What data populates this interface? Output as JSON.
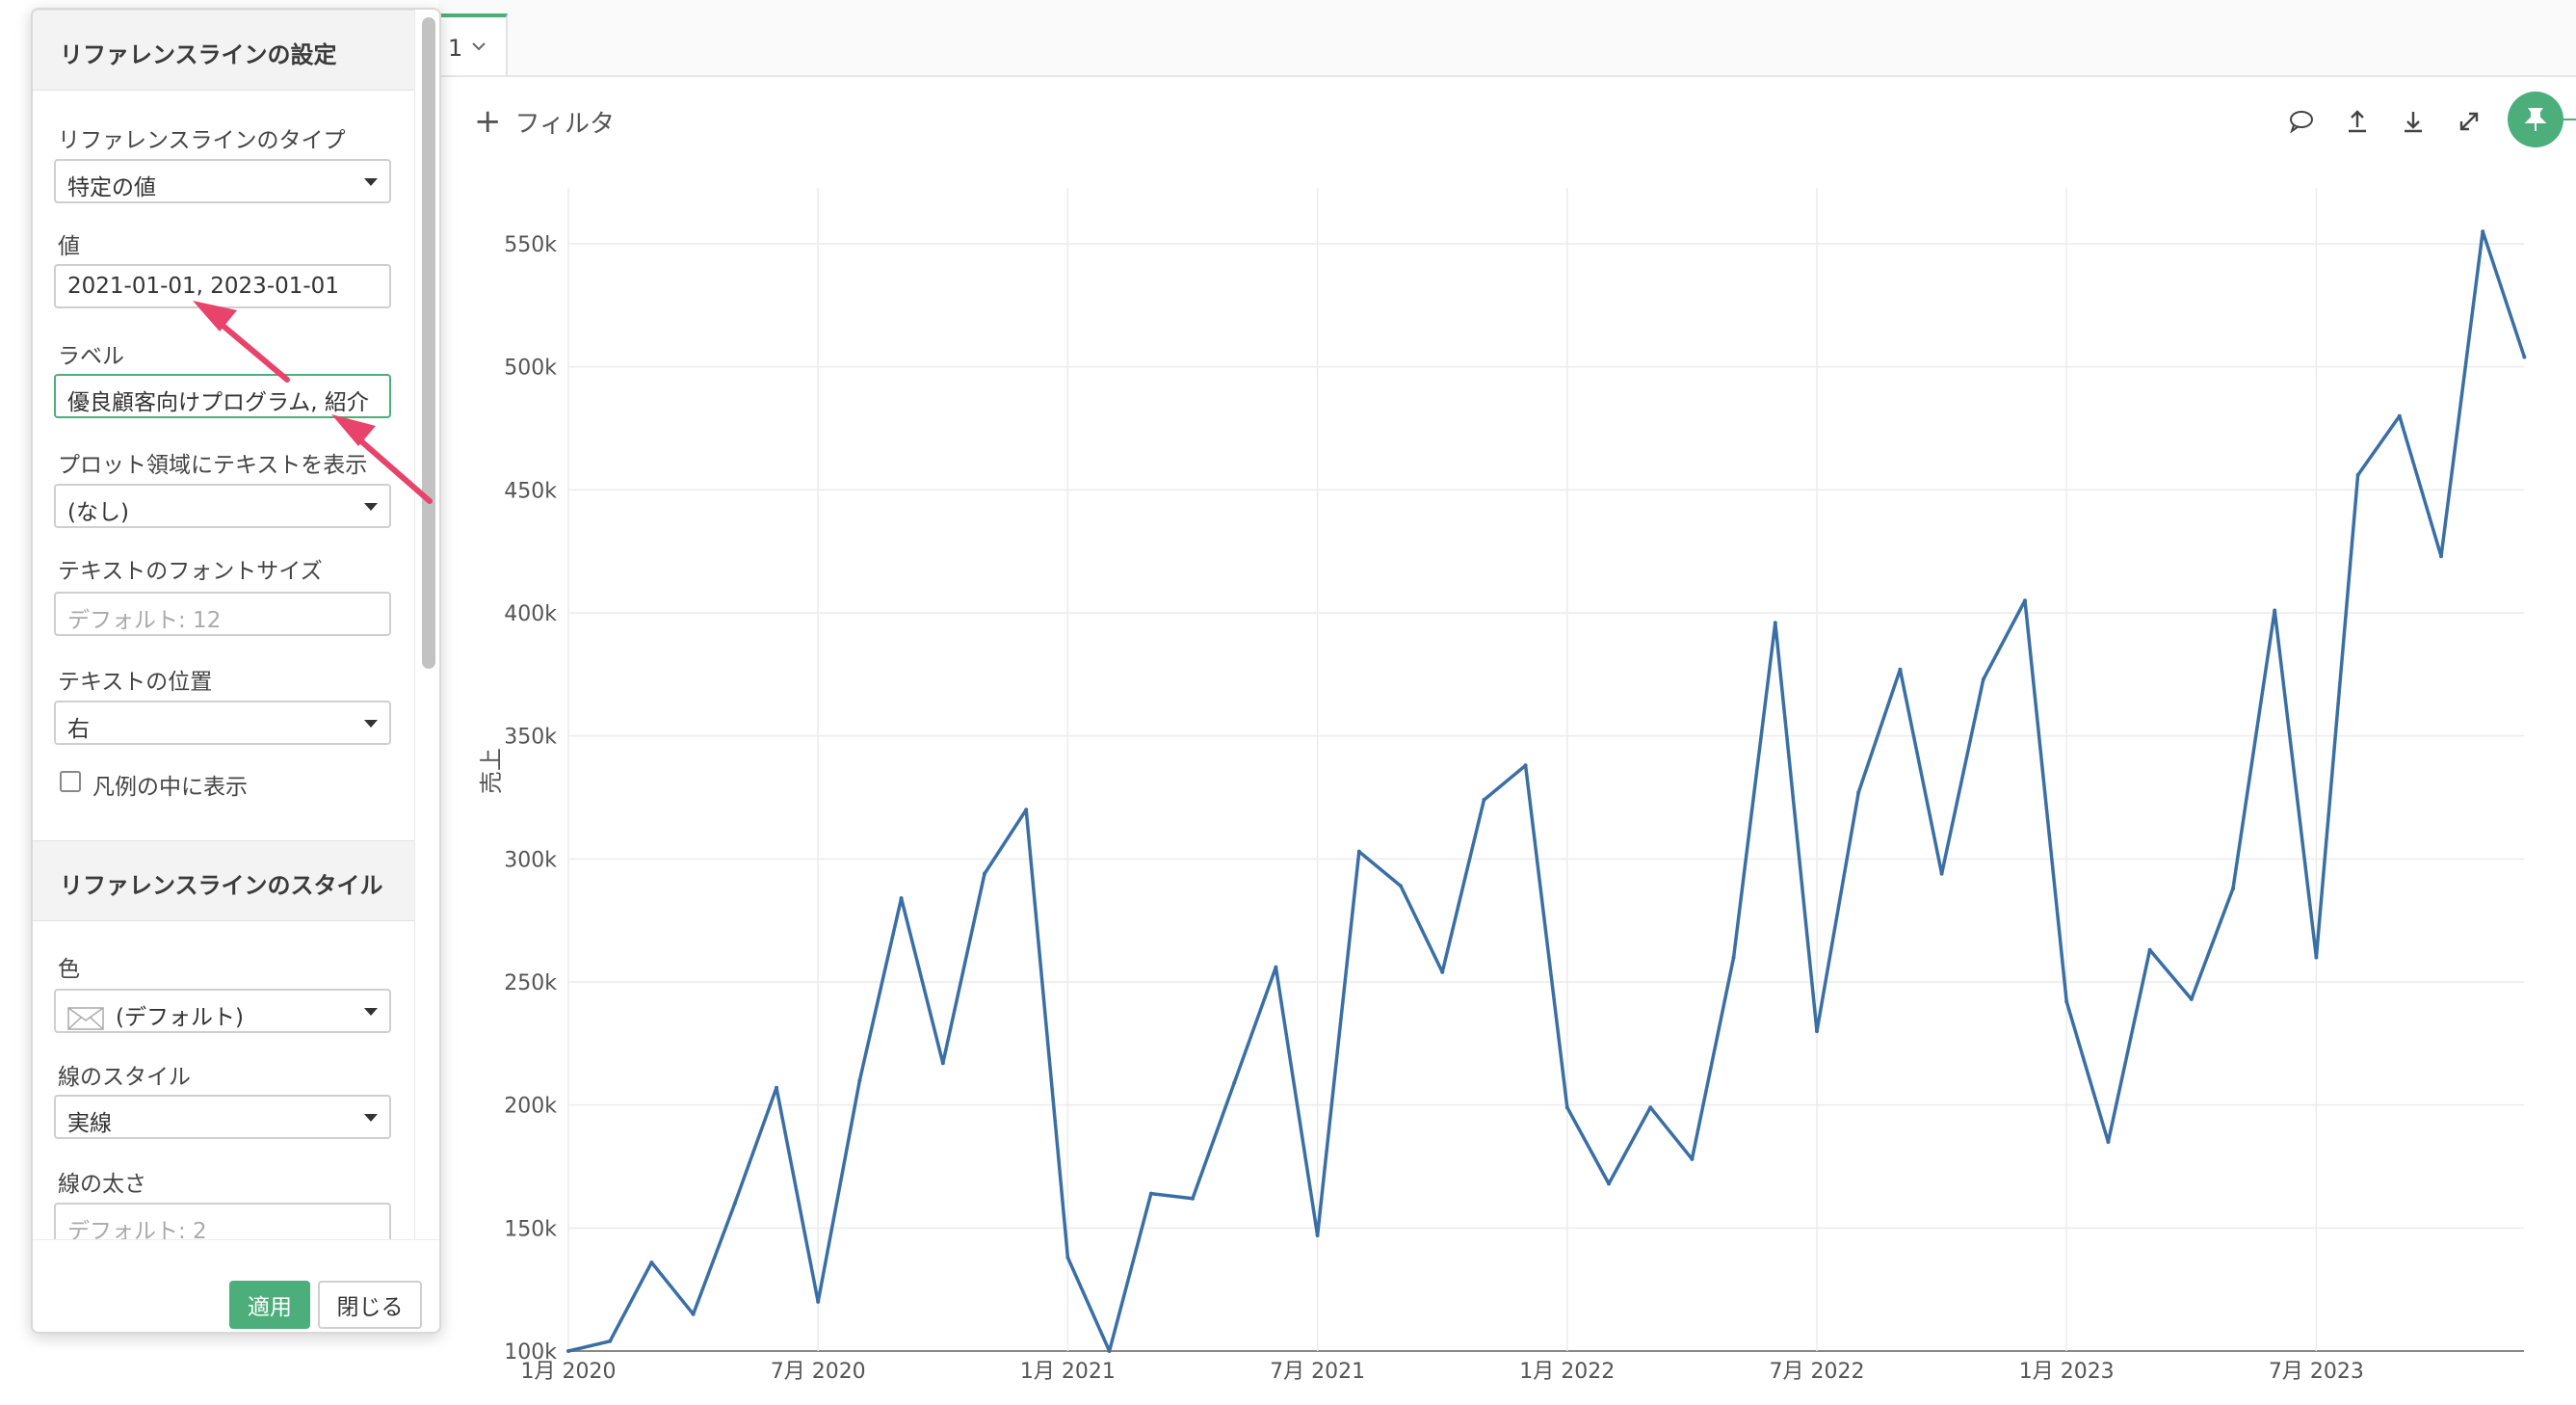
{
  "tab": {
    "label": "1"
  },
  "filter": {
    "label": "フィルタ"
  },
  "toolbar": {
    "icons": [
      "comment-icon",
      "upload-icon",
      "download-icon",
      "expand-icon",
      "pin-icon"
    ]
  },
  "panel": {
    "section1_title": "リファレンスラインの設定",
    "type_label": "リファレンスラインのタイプ",
    "type_value": "特定の値",
    "value_label": "値",
    "value_value": "2021-01-01, 2023-01-01",
    "text_label": "ラベル",
    "text_value": "優良顧客向けプログラム, 紹介",
    "plot_text_label": "プロット領域にテキストを表示",
    "plot_text_value": "(なし)",
    "font_size_label": "テキストのフォントサイズ",
    "font_size_placeholder": "デフォルト: 12",
    "position_label": "テキストの位置",
    "position_value": "右",
    "legend_checkbox_label": "凡例の中に表示",
    "section2_title": "リファレンスラインのスタイル",
    "color_label": "色",
    "color_value": "(デフォルト)",
    "line_style_label": "線のスタイル",
    "line_style_value": "実線",
    "line_width_label": "線の太さ",
    "line_width_placeholder": "デフォルト: 2",
    "apply_label": "適用",
    "close_label": "閉じる"
  },
  "colors": {
    "accent": "#4cae7a",
    "line": "#3a6fa5",
    "arrow": "#e8436b"
  },
  "chart_data": {
    "type": "line",
    "title": "",
    "xlabel": "",
    "ylabel": "売上",
    "ylim": [
      100000,
      550000
    ],
    "y_ticks": [
      100000,
      150000,
      200000,
      250000,
      300000,
      350000,
      400000,
      450000,
      500000,
      550000
    ],
    "y_tick_labels": [
      "100k",
      "150k",
      "200k",
      "250k",
      "300k",
      "350k",
      "400k",
      "450k",
      "500k",
      "550k"
    ],
    "x_tick_labels": [
      "1月 2020",
      "7月 2020",
      "1月 2021",
      "7月 2021",
      "1月 2022",
      "7月 2022",
      "1月 2023",
      "7月 2023"
    ],
    "x_start": "2020-01",
    "x_end": "2023-08",
    "grid": true,
    "series": [
      {
        "values": [
          100000,
          104000,
          136000,
          115000,
          160000,
          207000,
          120000,
          210000,
          284000,
          217000,
          294000,
          320000,
          138000,
          100000,
          164000,
          162000,
          209000,
          256000,
          147000,
          303000,
          289000,
          254000,
          324000,
          338000,
          199000,
          168000,
          199000,
          178000,
          260000,
          396000,
          230000,
          327000,
          377000,
          294000,
          373000,
          405000,
          242000,
          185000,
          263000,
          243000,
          288000,
          401000,
          260000,
          456000,
          480000,
          423000,
          555000,
          504000
        ]
      }
    ]
  }
}
